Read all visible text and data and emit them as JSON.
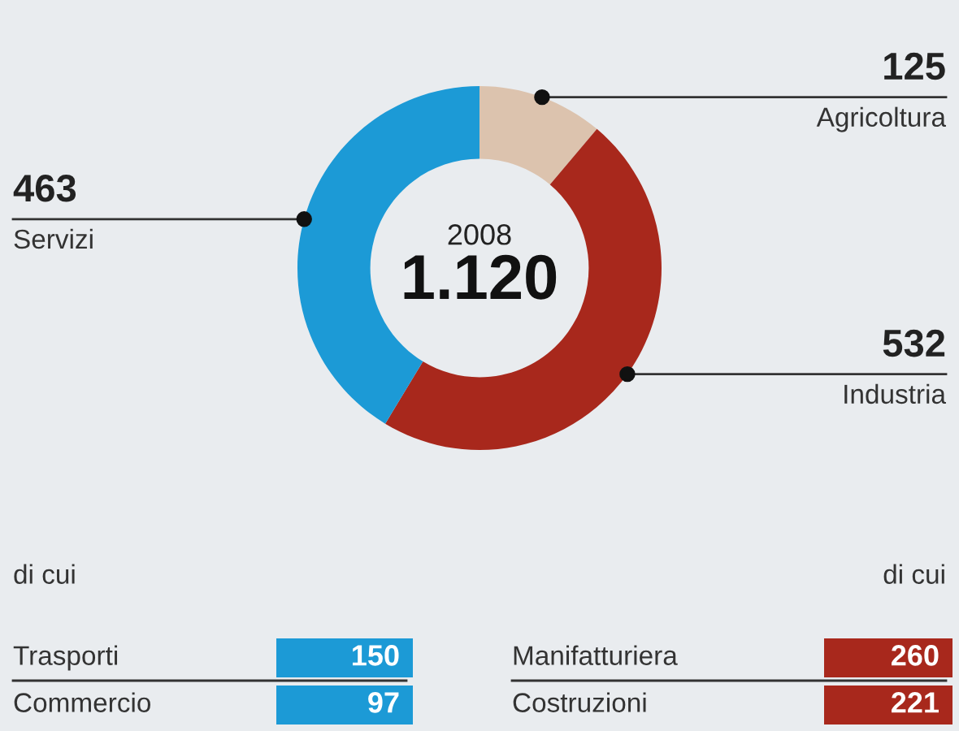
{
  "chart_data": {
    "type": "donut",
    "title": "1.120",
    "subtitle": "2008",
    "categories": [
      "Agricoltura",
      "Industria",
      "Servizi"
    ],
    "values": [
      125,
      532,
      463
    ],
    "colors": [
      "#dcc3ae",
      "#a8281c",
      "#1c9ad6"
    ],
    "data_labels": true,
    "legend": false,
    "annotations": [
      "di cui",
      "Trasporti",
      "150",
      "Commercio",
      "97",
      "di cui",
      "Manifatturiera",
      "260",
      "Costruzioni",
      "221"
    ]
  }
}
